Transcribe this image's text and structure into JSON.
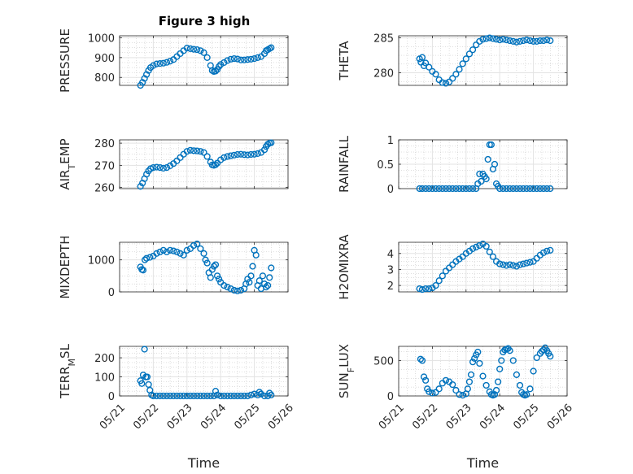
{
  "colors": {
    "marker": "#0072BD",
    "axis": "#262626",
    "grid": "#e3e3e3",
    "minor_grid": "#bfbfbf"
  },
  "figure_title": "Figure 3 high",
  "chart_data": [
    {
      "type": "scatter",
      "ylabel": "PRESSURE",
      "ylim": [
        760,
        1010
      ],
      "yticks": [
        800,
        900,
        1000
      ],
      "xlim": [
        0,
        5
      ],
      "xticks": [
        0,
        1,
        2,
        3,
        4,
        5
      ],
      "xticklabels": [],
      "grid": true,
      "x": [
        0.62,
        0.68,
        0.74,
        0.8,
        0.86,
        0.92,
        1.0,
        1.1,
        1.2,
        1.3,
        1.4,
        1.5,
        1.6,
        1.7,
        1.8,
        1.9,
        2.0,
        2.1,
        2.2,
        2.3,
        2.4,
        2.5,
        2.6,
        2.7,
        2.75,
        2.8,
        2.85,
        2.9,
        2.95,
        3.0,
        3.1,
        3.2,
        3.3,
        3.4,
        3.5,
        3.6,
        3.7,
        3.8,
        3.9,
        4.0,
        4.1,
        4.2,
        4.3,
        4.35,
        4.4,
        4.45,
        4.5
      ],
      "y": [
        760,
        775,
        795,
        815,
        835,
        850,
        860,
        868,
        870,
        872,
        876,
        882,
        890,
        905,
        920,
        935,
        948,
        945,
        942,
        940,
        935,
        925,
        900,
        860,
        835,
        830,
        832,
        840,
        855,
        865,
        875,
        885,
        892,
        895,
        893,
        888,
        888,
        890,
        892,
        895,
        900,
        905,
        920,
        935,
        940,
        945,
        950
      ]
    },
    {
      "type": "scatter",
      "ylabel": "THETA",
      "ylim": [
        278.2,
        285.3
      ],
      "yticks": [
        280,
        285
      ],
      "xlim": [
        0,
        5
      ],
      "xticks": [
        0,
        1,
        2,
        3,
        4,
        5
      ],
      "xticklabels": [],
      "grid": true,
      "x": [
        0.62,
        0.66,
        0.7,
        0.75,
        0.8,
        0.9,
        1.0,
        1.1,
        1.2,
        1.3,
        1.4,
        1.5,
        1.6,
        1.7,
        1.8,
        1.9,
        2.0,
        2.1,
        2.2,
        2.3,
        2.4,
        2.5,
        2.6,
        2.7,
        2.8,
        2.9,
        3.0,
        3.1,
        3.2,
        3.3,
        3.4,
        3.5,
        3.6,
        3.7,
        3.8,
        3.9,
        4.0,
        4.1,
        4.2,
        4.3,
        4.4,
        4.5
      ],
      "y": [
        282.0,
        281.5,
        282.2,
        281.0,
        281.4,
        280.8,
        280.2,
        279.8,
        279.0,
        278.6,
        278.5,
        278.7,
        279.2,
        279.8,
        280.5,
        281.3,
        282.0,
        282.7,
        283.3,
        284.0,
        284.5,
        284.8,
        284.9,
        285.0,
        284.9,
        284.8,
        284.7,
        284.8,
        284.7,
        284.6,
        284.5,
        284.4,
        284.5,
        284.6,
        284.7,
        284.6,
        284.5,
        284.5,
        284.6,
        284.6,
        284.7,
        284.6
      ]
    },
    {
      "type": "scatter",
      "ylabel": "AIR_TEMP",
      "ylim": [
        259.5,
        281.5
      ],
      "yticks": [
        260,
        270,
        280
      ],
      "xlim": [
        0,
        5
      ],
      "xticks": [
        0,
        1,
        2,
        3,
        4,
        5
      ],
      "xticklabels": [],
      "grid": true,
      "x": [
        0.62,
        0.68,
        0.74,
        0.8,
        0.86,
        0.92,
        1.0,
        1.1,
        1.2,
        1.3,
        1.4,
        1.5,
        1.6,
        1.7,
        1.8,
        1.9,
        2.0,
        2.1,
        2.2,
        2.3,
        2.4,
        2.5,
        2.6,
        2.7,
        2.75,
        2.8,
        2.85,
        2.9,
        3.0,
        3.1,
        3.2,
        3.3,
        3.4,
        3.5,
        3.6,
        3.7,
        3.8,
        3.9,
        4.0,
        4.1,
        4.2,
        4.3,
        4.35,
        4.4,
        4.45,
        4.5
      ],
      "y": [
        260.5,
        262,
        264,
        266,
        267.5,
        268.5,
        269,
        269.2,
        269,
        268.7,
        269,
        269.8,
        270.8,
        272,
        273.5,
        275,
        276.3,
        276.8,
        276.6,
        276.5,
        276.3,
        275.8,
        274,
        271.5,
        270.2,
        270,
        270.3,
        271,
        272.5,
        273.5,
        274,
        274.3,
        274.6,
        274.9,
        275,
        274.8,
        274.7,
        274.9,
        275,
        275.3,
        275.8,
        277,
        278.5,
        279.5,
        280,
        280.2
      ]
    },
    {
      "type": "scatter",
      "ylabel": "RAINFALL",
      "ylim": [
        0,
        1
      ],
      "yticks": [
        0,
        0.5,
        1
      ],
      "xlim": [
        0,
        5
      ],
      "xticks": [
        0,
        1,
        2,
        3,
        4,
        5
      ],
      "xticklabels": [],
      "grid": true,
      "x": [
        0.62,
        0.7,
        0.8,
        0.9,
        1.0,
        1.1,
        1.2,
        1.3,
        1.4,
        1.5,
        1.6,
        1.7,
        1.8,
        1.9,
        2.0,
        2.1,
        2.2,
        2.3,
        2.35,
        2.4,
        2.45,
        2.5,
        2.55,
        2.6,
        2.65,
        2.7,
        2.75,
        2.8,
        2.85,
        2.9,
        2.95,
        3.0,
        3.1,
        3.2,
        3.3,
        3.4,
        3.5,
        3.6,
        3.7,
        3.8,
        3.9,
        4.0,
        4.1,
        4.2,
        4.3,
        4.4,
        4.5
      ],
      "y": [
        0,
        0,
        0,
        0,
        0,
        0,
        0,
        0,
        0,
        0,
        0,
        0,
        0,
        0,
        0,
        0,
        0,
        0,
        0.1,
        0.3,
        0.15,
        0.3,
        0.25,
        0.2,
        0.6,
        0.9,
        0.9,
        0.4,
        0.5,
        0.1,
        0.05,
        0,
        0,
        0,
        0,
        0,
        0,
        0,
        0,
        0,
        0,
        0,
        0,
        0,
        0,
        0,
        0
      ]
    },
    {
      "type": "scatter",
      "ylabel": "MIXDEPTH",
      "ylim": [
        0,
        1550
      ],
      "yticks": [
        0,
        1000
      ],
      "xlim": [
        0,
        5
      ],
      "xticks": [
        0,
        1,
        2,
        3,
        4,
        5
      ],
      "xticklabels": [],
      "grid": true,
      "x": [
        0.62,
        0.66,
        0.7,
        0.75,
        0.8,
        0.9,
        1.0,
        1.1,
        1.2,
        1.3,
        1.4,
        1.5,
        1.6,
        1.7,
        1.8,
        1.9,
        2.0,
        2.1,
        2.2,
        2.3,
        2.4,
        2.5,
        2.55,
        2.6,
        2.65,
        2.7,
        2.75,
        2.8,
        2.85,
        2.9,
        2.95,
        3.0,
        3.1,
        3.2,
        3.3,
        3.4,
        3.5,
        3.6,
        3.7,
        3.75,
        3.8,
        3.85,
        3.9,
        3.95,
        4.0,
        4.05,
        4.1,
        4.15,
        4.2,
        4.25,
        4.3,
        4.35,
        4.4,
        4.45,
        4.5
      ],
      "y": [
        780,
        700,
        680,
        1000,
        1050,
        1080,
        1120,
        1200,
        1250,
        1300,
        1250,
        1300,
        1280,
        1250,
        1200,
        1150,
        1300,
        1350,
        1450,
        1500,
        1350,
        1200,
        1000,
        900,
        600,
        450,
        700,
        800,
        850,
        500,
        400,
        300,
        200,
        150,
        100,
        50,
        30,
        50,
        100,
        250,
        400,
        300,
        500,
        800,
        1300,
        1150,
        200,
        350,
        100,
        500,
        250,
        150,
        200,
        450,
        750
      ]
    },
    {
      "type": "scatter",
      "ylabel": "H2OMIXRA",
      "ylim": [
        1.6,
        4.7
      ],
      "yticks": [
        2,
        3,
        4
      ],
      "xlim": [
        0,
        5
      ],
      "xticks": [
        0,
        1,
        2,
        3,
        4,
        5
      ],
      "xticklabels": [],
      "grid": true,
      "x": [
        0.62,
        0.7,
        0.8,
        0.9,
        1.0,
        1.1,
        1.2,
        1.3,
        1.4,
        1.5,
        1.6,
        1.7,
        1.8,
        1.9,
        2.0,
        2.1,
        2.2,
        2.3,
        2.4,
        2.5,
        2.6,
        2.7,
        2.8,
        2.9,
        3.0,
        3.1,
        3.2,
        3.3,
        3.4,
        3.5,
        3.6,
        3.7,
        3.8,
        3.9,
        4.0,
        4.1,
        4.2,
        4.3,
        4.4,
        4.5
      ],
      "y": [
        1.8,
        1.75,
        1.8,
        1.8,
        1.85,
        2.0,
        2.3,
        2.6,
        2.9,
        3.1,
        3.3,
        3.5,
        3.65,
        3.8,
        4.0,
        4.15,
        4.3,
        4.4,
        4.5,
        4.6,
        4.45,
        4.1,
        3.8,
        3.5,
        3.35,
        3.3,
        3.25,
        3.3,
        3.25,
        3.2,
        3.3,
        3.35,
        3.4,
        3.45,
        3.5,
        3.7,
        3.9,
        4.05,
        4.15,
        4.2
      ]
    },
    {
      "type": "scatter",
      "ylabel": "TERR_MSL",
      "ylim": [
        0,
        260
      ],
      "yticks": [
        0,
        100,
        200
      ],
      "xlim": [
        0,
        5
      ],
      "xticks": [
        0,
        1,
        2,
        3,
        4,
        5
      ],
      "xticklabels": [
        "05/21",
        "05/22",
        "05/23",
        "05/24",
        "05/25",
        "05/26"
      ],
      "xlabel": "Time",
      "grid": true,
      "x": [
        0.62,
        0.66,
        0.7,
        0.74,
        0.78,
        0.82,
        0.86,
        0.9,
        0.95,
        1.0,
        1.1,
        1.2,
        1.3,
        1.4,
        1.5,
        1.6,
        1.7,
        1.8,
        1.9,
        2.0,
        2.1,
        2.2,
        2.3,
        2.4,
        2.5,
        2.6,
        2.7,
        2.8,
        2.85,
        2.9,
        3.0,
        3.1,
        3.2,
        3.3,
        3.4,
        3.5,
        3.6,
        3.7,
        3.8,
        3.9,
        4.0,
        4.1,
        4.15,
        4.2,
        4.3,
        4.4,
        4.45,
        4.5
      ],
      "y": [
        80,
        65,
        110,
        245,
        100,
        100,
        60,
        30,
        5,
        0,
        0,
        0,
        0,
        0,
        0,
        0,
        0,
        0,
        0,
        0,
        0,
        0,
        0,
        0,
        0,
        0,
        0,
        0,
        25,
        5,
        0,
        0,
        0,
        0,
        0,
        0,
        0,
        0,
        0,
        5,
        10,
        5,
        20,
        10,
        0,
        0,
        15,
        5
      ]
    },
    {
      "type": "scatter",
      "ylabel": "SUN_FLUX",
      "ylim": [
        0,
        700
      ],
      "yticks": [
        0,
        500
      ],
      "xlim": [
        0,
        5
      ],
      "xticks": [
        0,
        1,
        2,
        3,
        4,
        5
      ],
      "xticklabels": [
        "05/21",
        "05/22",
        "05/23",
        "05/24",
        "05/25",
        "05/26"
      ],
      "xlabel": "Time",
      "grid": true,
      "x": [
        0.65,
        0.7,
        0.75,
        0.8,
        0.85,
        0.9,
        1.0,
        1.1,
        1.2,
        1.3,
        1.4,
        1.5,
        1.6,
        1.7,
        1.8,
        1.9,
        2.0,
        2.05,
        2.1,
        2.15,
        2.2,
        2.25,
        2.3,
        2.35,
        2.4,
        2.5,
        2.6,
        2.7,
        2.75,
        2.8,
        2.85,
        2.9,
        2.95,
        3.0,
        3.05,
        3.1,
        3.15,
        3.2,
        3.25,
        3.3,
        3.4,
        3.5,
        3.6,
        3.65,
        3.7,
        3.75,
        3.8,
        3.9,
        4.0,
        4.1,
        4.2,
        4.25,
        4.3,
        4.35,
        4.4,
        4.45,
        4.5
      ],
      "y": [
        520,
        500,
        270,
        220,
        100,
        60,
        40,
        50,
        100,
        180,
        220,
        200,
        160,
        80,
        20,
        10,
        30,
        100,
        200,
        300,
        480,
        530,
        580,
        620,
        460,
        280,
        150,
        60,
        20,
        10,
        20,
        80,
        200,
        380,
        500,
        620,
        650,
        660,
        670,
        640,
        500,
        300,
        150,
        50,
        20,
        10,
        20,
        100,
        350,
        540,
        600,
        630,
        650,
        680,
        640,
        600,
        560
      ]
    }
  ]
}
